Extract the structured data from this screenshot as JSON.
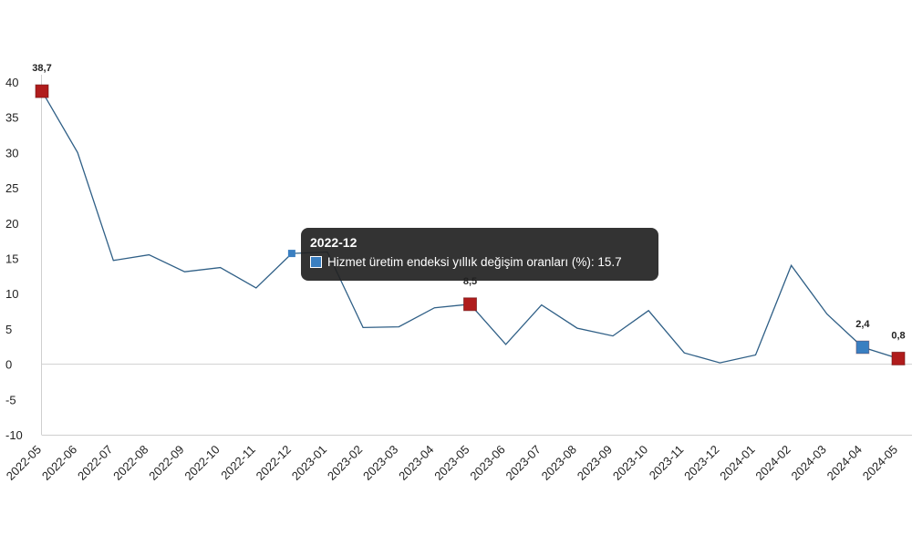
{
  "chart_data": {
    "type": "line",
    "categories": [
      "2022-05",
      "2022-06",
      "2022-07",
      "2022-08",
      "2022-09",
      "2022-10",
      "2022-11",
      "2022-12",
      "2023-01",
      "2023-02",
      "2023-03",
      "2023-04",
      "2023-05",
      "2023-06",
      "2023-07",
      "2023-08",
      "2023-09",
      "2023-10",
      "2023-11",
      "2023-12",
      "2024-01",
      "2024-02",
      "2024-03",
      "2024-04",
      "2024-05"
    ],
    "series": [
      {
        "name": "Hizmet üretim endeksi yıllık değişim oranları (%)",
        "values": [
          38.7,
          30.0,
          14.7,
          15.5,
          13.1,
          13.7,
          10.8,
          15.7,
          15.9,
          5.2,
          5.3,
          8.0,
          8.5,
          2.8,
          8.4,
          5.1,
          4.0,
          7.6,
          1.6,
          0.2,
          1.3,
          14.0,
          7.1,
          2.4,
          0.8
        ],
        "color": "#2f5f86"
      }
    ],
    "ylim": [
      -10,
      40
    ],
    "yticks": [
      -10,
      -5,
      0,
      5,
      10,
      15,
      20,
      25,
      30,
      35,
      40
    ],
    "grid": false,
    "markers": [
      {
        "category": "2022-05",
        "label": "38,7",
        "color": "#b01c1c"
      },
      {
        "category": "2023-05",
        "label": "8,5",
        "color": "#b01c1c"
      },
      {
        "category": "2024-04",
        "label": "2,4",
        "color": "#3a7fc1"
      },
      {
        "category": "2024-05",
        "label": "0,8",
        "color": "#b01c1c"
      }
    ],
    "hover_marker": {
      "category": "2022-12",
      "color": "#3a7fc1"
    }
  },
  "tooltip": {
    "title": "2022-12",
    "series_name": "Hizmet üretim endeksi yıllık değişim oranları (%)",
    "value_text": "15.7"
  }
}
